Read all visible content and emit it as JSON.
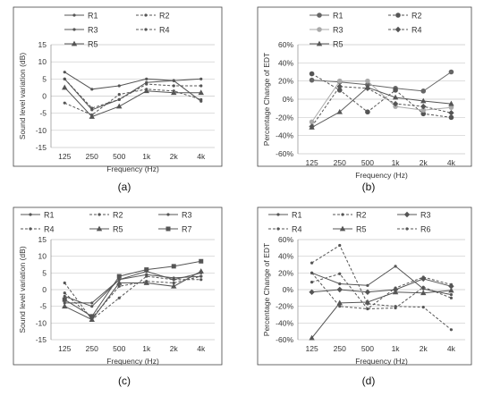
{
  "panels": [
    {
      "label": "(a)",
      "chart_data": {
        "type": "line",
        "categories": [
          "125",
          "250",
          "500",
          "1k",
          "2k",
          "4k"
        ],
        "xlabel": "Frequency (Hz)",
        "ylabel": "Sound level variation (dB)",
        "ylim": [
          -15,
          15
        ],
        "yticks": [
          -15,
          -10,
          -5,
          0,
          5,
          10,
          15
        ],
        "legend": {
          "placement": "top",
          "columns": 2
        },
        "series": [
          {
            "name": "R1",
            "values": [
              7,
              2,
              3,
              5,
              4.5,
              5
            ],
            "dash": "solid",
            "marker": "dot",
            "color": "#555555"
          },
          {
            "name": "R2",
            "values": [
              -2,
              -5.5,
              0.5,
              2,
              1.5,
              -1
            ],
            "dash": "dashed",
            "marker": "dot",
            "color": "#555555"
          },
          {
            "name": "R3",
            "values": [
              5,
              -4,
              -1,
              4,
              4.5,
              -1.5
            ],
            "dash": "solid",
            "marker": "dot",
            "color": "#555555"
          },
          {
            "name": "R4",
            "values": [
              5,
              -3.5,
              -1,
              3.5,
              3,
              3
            ],
            "dash": "dashed",
            "marker": "dot",
            "color": "#555555"
          },
          {
            "name": "R5",
            "values": [
              2.5,
              -6,
              -3,
              1.5,
              1,
              1
            ],
            "dash": "solid",
            "marker": "triangle",
            "color": "#555555"
          }
        ]
      }
    },
    {
      "label": "(b)",
      "chart_data": {
        "type": "line",
        "categories": [
          "125",
          "250",
          "500",
          "1k",
          "2k",
          "4k"
        ],
        "xlabel": "Frequency (Hz)",
        "ylabel": "Percentage Change of EDT",
        "ylim": [
          -60,
          60
        ],
        "yticks": [
          -60,
          -40,
          -20,
          0,
          20,
          40,
          60
        ],
        "yticklabels": [
          "-60%",
          "-40%",
          "-20%",
          "0%",
          "20%",
          "40%",
          "60%"
        ],
        "legend": {
          "placement": "top",
          "columns": 2
        },
        "series": [
          {
            "name": "R1",
            "values": [
              21,
              19,
              16,
              12,
              9,
              30
            ],
            "dash": "solid",
            "marker": "circle",
            "color": "#666666"
          },
          {
            "name": "R2",
            "values": [
              28,
              10,
              -14,
              10,
              -16,
              -20
            ],
            "dash": "dashed",
            "marker": "circle",
            "color": "#555555"
          },
          {
            "name": "R3",
            "values": [
              -25,
              20,
              20,
              -8,
              -12,
              -9
            ],
            "dash": "solid",
            "marker": "circle",
            "color": "#aaaaaa"
          },
          {
            "name": "R4",
            "values": [
              -30,
              14,
              12,
              -5,
              -8,
              -15
            ],
            "dash": "dashed",
            "marker": "diamond",
            "color": "#555555"
          },
          {
            "name": "R5",
            "values": [
              -31,
              -14,
              13,
              2,
              -2,
              -5
            ],
            "dash": "solid",
            "marker": "triangle",
            "color": "#555555"
          }
        ]
      }
    },
    {
      "label": "(c)",
      "chart_data": {
        "type": "line",
        "categories": [
          "125",
          "250",
          "500",
          "1k",
          "2k",
          "4k"
        ],
        "xlabel": "Frequency (Hz)",
        "ylabel": "Sound level variation (dB)",
        "ylim": [
          -15,
          15
        ],
        "yticks": [
          -15,
          -10,
          -5,
          0,
          5,
          10,
          15
        ],
        "legend": {
          "placement": "top",
          "columns": 3
        },
        "series": [
          {
            "name": "R1",
            "values": [
              -2,
              -5,
              3,
              5.5,
              3,
              5
            ],
            "dash": "solid",
            "marker": "dot",
            "color": "#555555"
          },
          {
            "name": "R2",
            "values": [
              2,
              -9,
              -2.5,
              4,
              3,
              3
            ],
            "dash": "dashed",
            "marker": "dot",
            "color": "#555555"
          },
          {
            "name": "R3",
            "values": [
              -4,
              -4,
              3,
              4.5,
              3.5,
              4
            ],
            "dash": "solid",
            "marker": "dot",
            "color": "#555555"
          },
          {
            "name": "R4",
            "values": [
              -1,
              -8.5,
              1,
              2.5,
              2,
              4
            ],
            "dash": "dashed",
            "marker": "dot",
            "color": "#555555"
          },
          {
            "name": "R5",
            "values": [
              -5,
              -9,
              2,
              2,
              1,
              5.5
            ],
            "dash": "solid",
            "marker": "triangle",
            "color": "#555555"
          },
          {
            "name": "R7",
            "values": [
              -3,
              -8,
              4,
              6,
              7,
              8.5
            ],
            "dash": "solid",
            "marker": "square",
            "color": "#555555"
          }
        ]
      }
    },
    {
      "label": "(d)",
      "chart_data": {
        "type": "line",
        "categories": [
          "125",
          "250",
          "500",
          "1k",
          "2k",
          "4k"
        ],
        "xlabel": "Frequency (Hz)",
        "ylabel": "Percentage Change of EDT",
        "ylim": [
          -60,
          60
        ],
        "yticks": [
          -60,
          -40,
          -20,
          0,
          20,
          40,
          60
        ],
        "yticklabels": [
          "-60%",
          "-40%",
          "-20%",
          "0%",
          "20%",
          "40%",
          "60%"
        ],
        "legend": {
          "placement": "top",
          "columns": 3
        },
        "series": [
          {
            "name": "R1",
            "values": [
              20,
              7,
              5,
              28,
              1,
              -6
            ],
            "dash": "solid",
            "marker": "dot",
            "color": "#555555"
          },
          {
            "name": "R2",
            "values": [
              9,
              19,
              -23,
              2,
              15,
              6
            ],
            "dash": "dashed",
            "marker": "dot",
            "color": "#555555"
          },
          {
            "name": "R3",
            "values": [
              -3,
              0,
              -3,
              0,
              13,
              4
            ],
            "dash": "solid",
            "marker": "diamond",
            "color": "#555555"
          },
          {
            "name": "R4",
            "values": [
              32,
              53,
              -17,
              -20,
              -21,
              -48
            ],
            "dash": "dashed",
            "marker": "dot",
            "color": "#555555"
          },
          {
            "name": "R5",
            "values": [
              -58,
              -16,
              -15,
              -3,
              -4,
              -1
            ],
            "dash": "solid",
            "marker": "triangle",
            "color": "#555555"
          },
          {
            "name": "R6",
            "values": [
              20,
              -20,
              -23,
              -22,
              3,
              -10
            ],
            "dash": "dashed",
            "marker": "dot",
            "color": "#555555"
          }
        ]
      }
    }
  ]
}
